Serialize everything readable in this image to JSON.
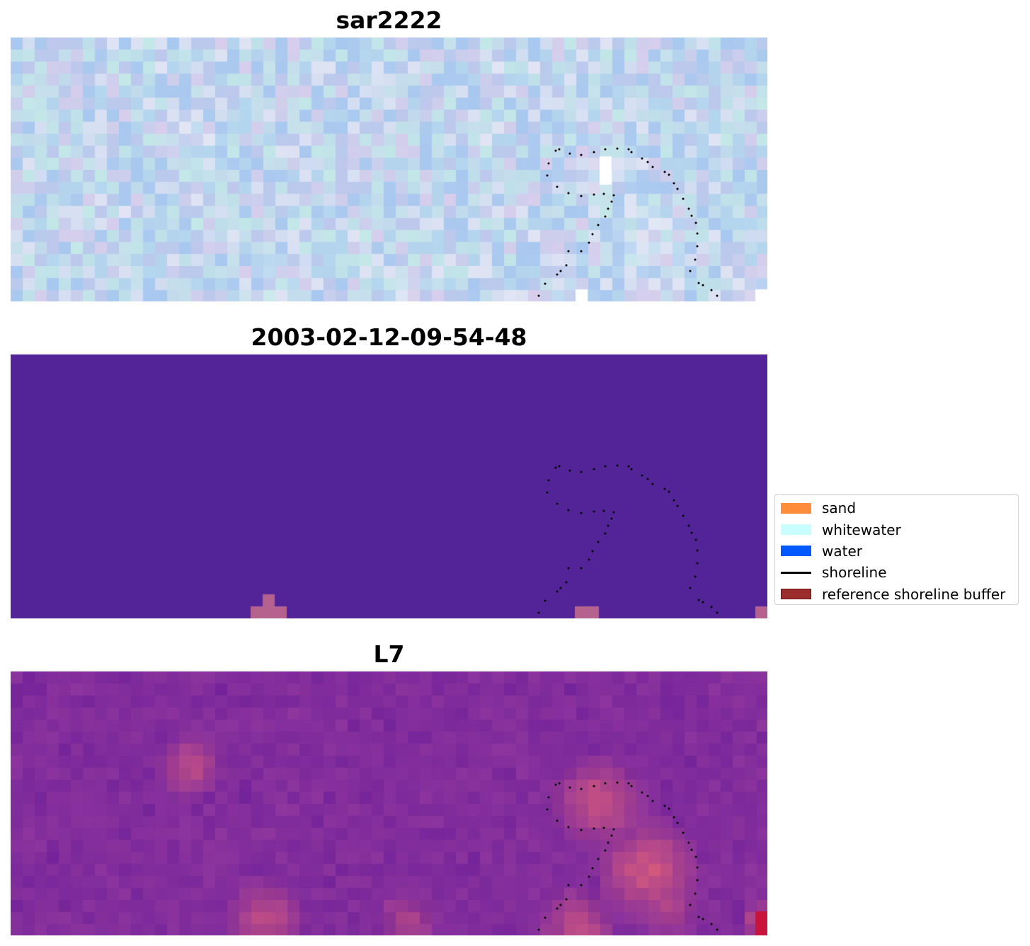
{
  "panels": [
    {
      "title": "sar2222",
      "kind": "sar",
      "base_color": "#b3cdec"
    },
    {
      "title": "2003-02-12-09-54-48",
      "kind": "classified",
      "base_color": "#532497",
      "highlight_color": "#b6628f"
    },
    {
      "title": "L7",
      "kind": "l7",
      "base_color": "#832e9d",
      "highlight_color": "#d65a7c"
    }
  ],
  "legend": {
    "items": [
      {
        "label": "sand",
        "color": "#ff8c3a",
        "type": "patch"
      },
      {
        "label": "whitewater",
        "color": "#c8fffe",
        "type": "patch"
      },
      {
        "label": "water",
        "color": "#0059ff",
        "type": "patch"
      },
      {
        "label": "shoreline",
        "color": "#000000",
        "type": "line"
      },
      {
        "label": "reference shoreline buffer",
        "color": "#9b2d2d",
        "edge": "#6b1010",
        "type": "patch"
      }
    ]
  },
  "shoreline": {
    "color": "#000000",
    "style": "dotted"
  }
}
